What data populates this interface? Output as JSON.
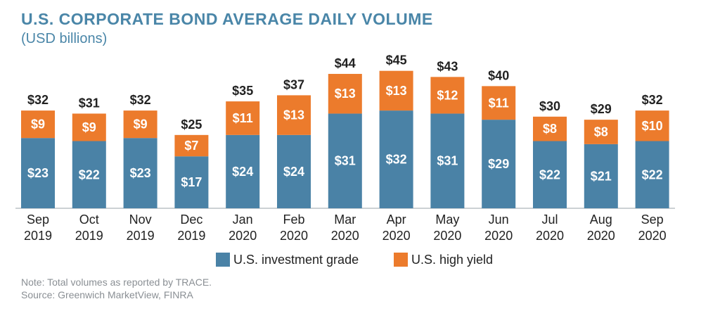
{
  "title": "U.S. CORPORATE BOND AVERAGE DAILY VOLUME",
  "subtitle": "(USD billions)",
  "notes": {
    "note": "Note: Total volumes as reported by TRACE.",
    "source": "Source: Greenwich MarketView, FINRA"
  },
  "colors": {
    "investment_grade": "#4a82a6",
    "high_yield": "#ec7b2c",
    "title": "#4a86a8"
  },
  "chart_data": {
    "type": "bar",
    "stacked": true,
    "categories": [
      [
        "Sep",
        "2019"
      ],
      [
        "Oct",
        "2019"
      ],
      [
        "Nov",
        "2019"
      ],
      [
        "Dec",
        "2019"
      ],
      [
        "Jan",
        "2020"
      ],
      [
        "Feb",
        "2020"
      ],
      [
        "Mar",
        "2020"
      ],
      [
        "Apr",
        "2020"
      ],
      [
        "May",
        "2020"
      ],
      [
        "Jun",
        "2020"
      ],
      [
        "Jul",
        "2020"
      ],
      [
        "Aug",
        "2020"
      ],
      [
        "Sep",
        "2020"
      ]
    ],
    "series": [
      {
        "name": "U.S. investment grade",
        "values": [
          23,
          22,
          23,
          17,
          24,
          24,
          31,
          32,
          31,
          29,
          22,
          21,
          22
        ],
        "labels": [
          "$23",
          "$22",
          "$23",
          "$17",
          "$24",
          "$24",
          "$31",
          "$32",
          "$31",
          "$29",
          "$22",
          "$21",
          "$22"
        ]
      },
      {
        "name": "U.S. high yield",
        "values": [
          9,
          9,
          9,
          7,
          11,
          13,
          13,
          13,
          12,
          11,
          8,
          8,
          10
        ],
        "labels": [
          "$9",
          "$9",
          "$9",
          "$7",
          "$11",
          "$13",
          "$13",
          "$13",
          "$12",
          "$11",
          "$8",
          "$8",
          "$10"
        ]
      }
    ],
    "totals": [
      32,
      31,
      32,
      25,
      35,
      37,
      44,
      45,
      43,
      40,
      30,
      29,
      32
    ],
    "total_labels": [
      "$32",
      "$31",
      "$32",
      "$25",
      "$35",
      "$37",
      "$44",
      "$45",
      "$43",
      "$40",
      "$30",
      "$29",
      "$32"
    ],
    "ylim": [
      0,
      47
    ],
    "grid": false,
    "legend_position": "bottom"
  }
}
